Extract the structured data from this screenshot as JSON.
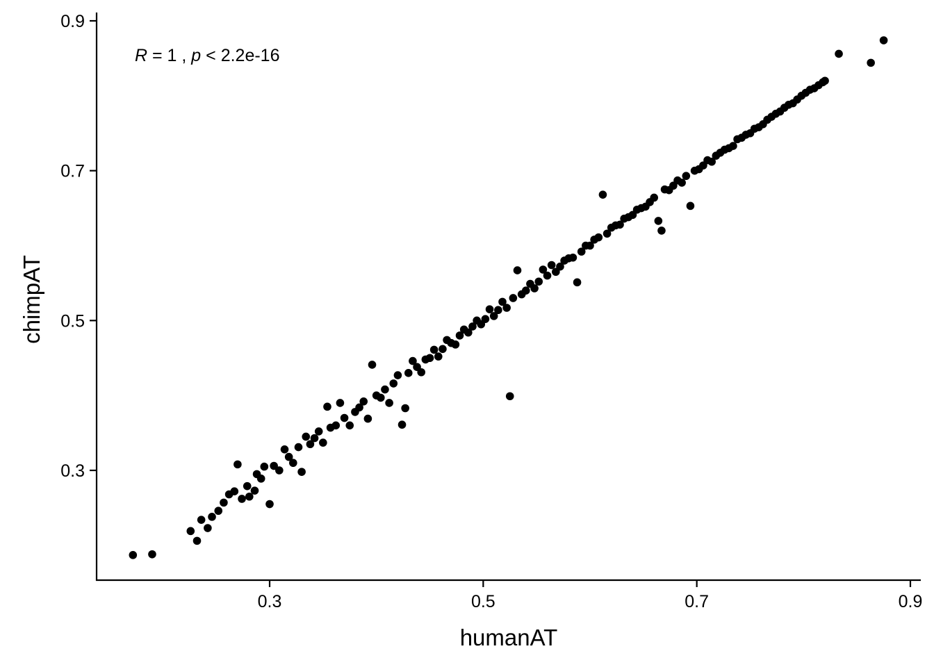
{
  "chart_data": {
    "type": "scatter",
    "title": "",
    "xlabel": "humanAT",
    "ylabel": "chimpAT",
    "xlim": [
      0.135,
      0.905
    ],
    "ylim": [
      0.15,
      0.915
    ],
    "x_ticks": [
      0.3,
      0.5,
      0.7,
      0.9
    ],
    "y_ticks": [
      0.3,
      0.5,
      0.7,
      0.9
    ],
    "x_tick_labels": [
      "0.3",
      "0.5",
      "0.7",
      "0.9"
    ],
    "y_tick_labels": [
      "0.3",
      "0.5",
      "0.7",
      "0.9"
    ],
    "grid": false,
    "point_color": "#000000",
    "annotation": {
      "r_symbol": "R",
      "r_value": " = 1 , ",
      "p_symbol": "p",
      "p_value": " < 2.2e-16"
    },
    "series": [
      {
        "values_note_omitted": true,
        "points": [
          [
            0.172,
            0.187
          ],
          [
            0.19,
            0.188
          ],
          [
            0.226,
            0.219
          ],
          [
            0.232,
            0.206
          ],
          [
            0.236,
            0.234
          ],
          [
            0.242,
            0.223
          ],
          [
            0.246,
            0.238
          ],
          [
            0.252,
            0.246
          ],
          [
            0.257,
            0.257
          ],
          [
            0.262,
            0.268
          ],
          [
            0.267,
            0.272
          ],
          [
            0.27,
            0.308
          ],
          [
            0.274,
            0.262
          ],
          [
            0.279,
            0.279
          ],
          [
            0.281,
            0.265
          ],
          [
            0.286,
            0.273
          ],
          [
            0.288,
            0.295
          ],
          [
            0.292,
            0.289
          ],
          [
            0.295,
            0.305
          ],
          [
            0.3,
            0.255
          ],
          [
            0.304,
            0.306
          ],
          [
            0.309,
            0.3
          ],
          [
            0.314,
            0.328
          ],
          [
            0.318,
            0.318
          ],
          [
            0.322,
            0.31
          ],
          [
            0.327,
            0.331
          ],
          [
            0.33,
            0.298
          ],
          [
            0.334,
            0.345
          ],
          [
            0.338,
            0.335
          ],
          [
            0.342,
            0.343
          ],
          [
            0.346,
            0.352
          ],
          [
            0.35,
            0.337
          ],
          [
            0.354,
            0.385
          ],
          [
            0.357,
            0.357
          ],
          [
            0.362,
            0.36
          ],
          [
            0.366,
            0.39
          ],
          [
            0.37,
            0.37
          ],
          [
            0.375,
            0.36
          ],
          [
            0.38,
            0.378
          ],
          [
            0.384,
            0.384
          ],
          [
            0.388,
            0.392
          ],
          [
            0.392,
            0.369
          ],
          [
            0.396,
            0.441
          ],
          [
            0.4,
            0.4
          ],
          [
            0.404,
            0.397
          ],
          [
            0.408,
            0.408
          ],
          [
            0.412,
            0.39
          ],
          [
            0.416,
            0.416
          ],
          [
            0.42,
            0.427
          ],
          [
            0.424,
            0.361
          ],
          [
            0.427,
            0.383
          ],
          [
            0.43,
            0.43
          ],
          [
            0.434,
            0.446
          ],
          [
            0.438,
            0.438
          ],
          [
            0.442,
            0.431
          ],
          [
            0.446,
            0.448
          ],
          [
            0.45,
            0.45
          ],
          [
            0.454,
            0.461
          ],
          [
            0.458,
            0.452
          ],
          [
            0.462,
            0.462
          ],
          [
            0.466,
            0.474
          ],
          [
            0.47,
            0.47
          ],
          [
            0.474,
            0.468
          ],
          [
            0.478,
            0.48
          ],
          [
            0.482,
            0.488
          ],
          [
            0.486,
            0.484
          ],
          [
            0.49,
            0.492
          ],
          [
            0.494,
            0.5
          ],
          [
            0.498,
            0.495
          ],
          [
            0.502,
            0.502
          ],
          [
            0.506,
            0.515
          ],
          [
            0.51,
            0.506
          ],
          [
            0.514,
            0.514
          ],
          [
            0.518,
            0.525
          ],
          [
            0.522,
            0.517
          ],
          [
            0.525,
            0.399
          ],
          [
            0.528,
            0.53
          ],
          [
            0.532,
            0.567
          ],
          [
            0.536,
            0.535
          ],
          [
            0.54,
            0.54
          ],
          [
            0.544,
            0.549
          ],
          [
            0.548,
            0.543
          ],
          [
            0.552,
            0.552
          ],
          [
            0.556,
            0.568
          ],
          [
            0.56,
            0.56
          ],
          [
            0.564,
            0.574
          ],
          [
            0.568,
            0.565
          ],
          [
            0.572,
            0.572
          ],
          [
            0.576,
            0.58
          ],
          [
            0.58,
            0.583
          ],
          [
            0.584,
            0.584
          ],
          [
            0.588,
            0.551
          ],
          [
            0.592,
            0.592
          ],
          [
            0.596,
            0.6
          ],
          [
            0.6,
            0.6
          ],
          [
            0.604,
            0.608
          ],
          [
            0.608,
            0.611
          ],
          [
            0.612,
            0.668
          ],
          [
            0.616,
            0.616
          ],
          [
            0.62,
            0.624
          ],
          [
            0.624,
            0.627
          ],
          [
            0.628,
            0.628
          ],
          [
            0.632,
            0.636
          ],
          [
            0.636,
            0.638
          ],
          [
            0.64,
            0.641
          ],
          [
            0.644,
            0.648
          ],
          [
            0.648,
            0.65
          ],
          [
            0.652,
            0.652
          ],
          [
            0.656,
            0.658
          ],
          [
            0.66,
            0.664
          ],
          [
            0.664,
            0.633
          ],
          [
            0.667,
            0.62
          ],
          [
            0.67,
            0.675
          ],
          [
            0.674,
            0.674
          ],
          [
            0.678,
            0.68
          ],
          [
            0.682,
            0.687
          ],
          [
            0.686,
            0.684
          ],
          [
            0.69,
            0.693
          ],
          [
            0.694,
            0.653
          ],
          [
            0.698,
            0.7
          ],
          [
            0.702,
            0.702
          ],
          [
            0.706,
            0.707
          ],
          [
            0.71,
            0.714
          ],
          [
            0.714,
            0.712
          ],
          [
            0.718,
            0.72
          ],
          [
            0.722,
            0.724
          ],
          [
            0.726,
            0.728
          ],
          [
            0.73,
            0.73
          ],
          [
            0.734,
            0.733
          ],
          [
            0.738,
            0.742
          ],
          [
            0.742,
            0.744
          ],
          [
            0.746,
            0.748
          ],
          [
            0.75,
            0.75
          ],
          [
            0.754,
            0.756
          ],
          [
            0.758,
            0.758
          ],
          [
            0.762,
            0.762
          ],
          [
            0.766,
            0.768
          ],
          [
            0.77,
            0.772
          ],
          [
            0.774,
            0.776
          ],
          [
            0.778,
            0.779
          ],
          [
            0.782,
            0.784
          ],
          [
            0.786,
            0.788
          ],
          [
            0.79,
            0.79
          ],
          [
            0.794,
            0.795
          ],
          [
            0.798,
            0.8
          ],
          [
            0.802,
            0.804
          ],
          [
            0.806,
            0.808
          ],
          [
            0.81,
            0.81
          ],
          [
            0.814,
            0.814
          ],
          [
            0.818,
            0.818
          ],
          [
            0.82,
            0.82
          ],
          [
            0.833,
            0.856
          ],
          [
            0.863,
            0.844
          ],
          [
            0.875,
            0.874
          ]
        ]
      }
    ]
  }
}
